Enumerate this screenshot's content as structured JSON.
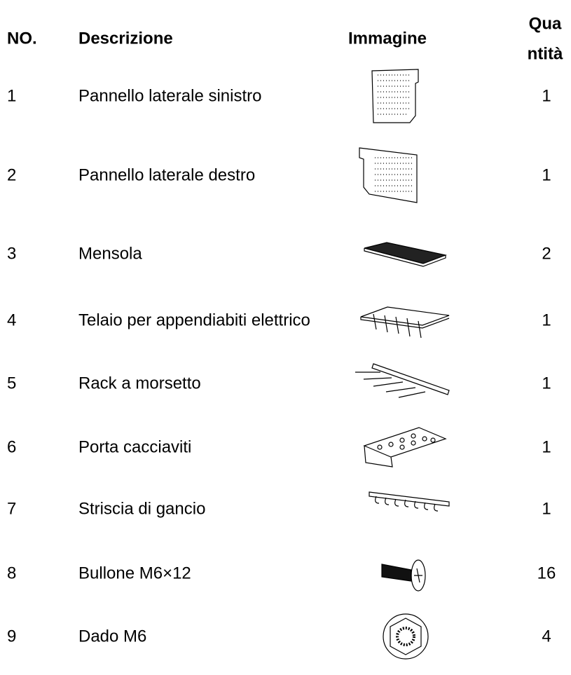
{
  "table": {
    "header": {
      "number": "NO.",
      "description": "Descrizione",
      "image": "Immagine",
      "quantity": [
        "Qua",
        "ntità"
      ]
    },
    "rows": [
      [
        "1",
        "Pannello laterale sinistro",
        1
      ],
      [
        "2",
        "Pannello laterale destro",
        1
      ],
      [
        "3",
        "Mensola",
        2
      ],
      [
        "4",
        "Telaio per appendiabiti elettrico",
        1
      ],
      [
        "5",
        "Rack a morsetto",
        1
      ],
      [
        "6",
        "Porta cacciaviti",
        1
      ],
      [
        "7",
        "Striscia di gancio",
        1
      ],
      [
        "8",
        "Bullone M6×12",
        16
      ],
      [
        "9",
        "Dado M6",
        4
      ]
    ]
  }
}
